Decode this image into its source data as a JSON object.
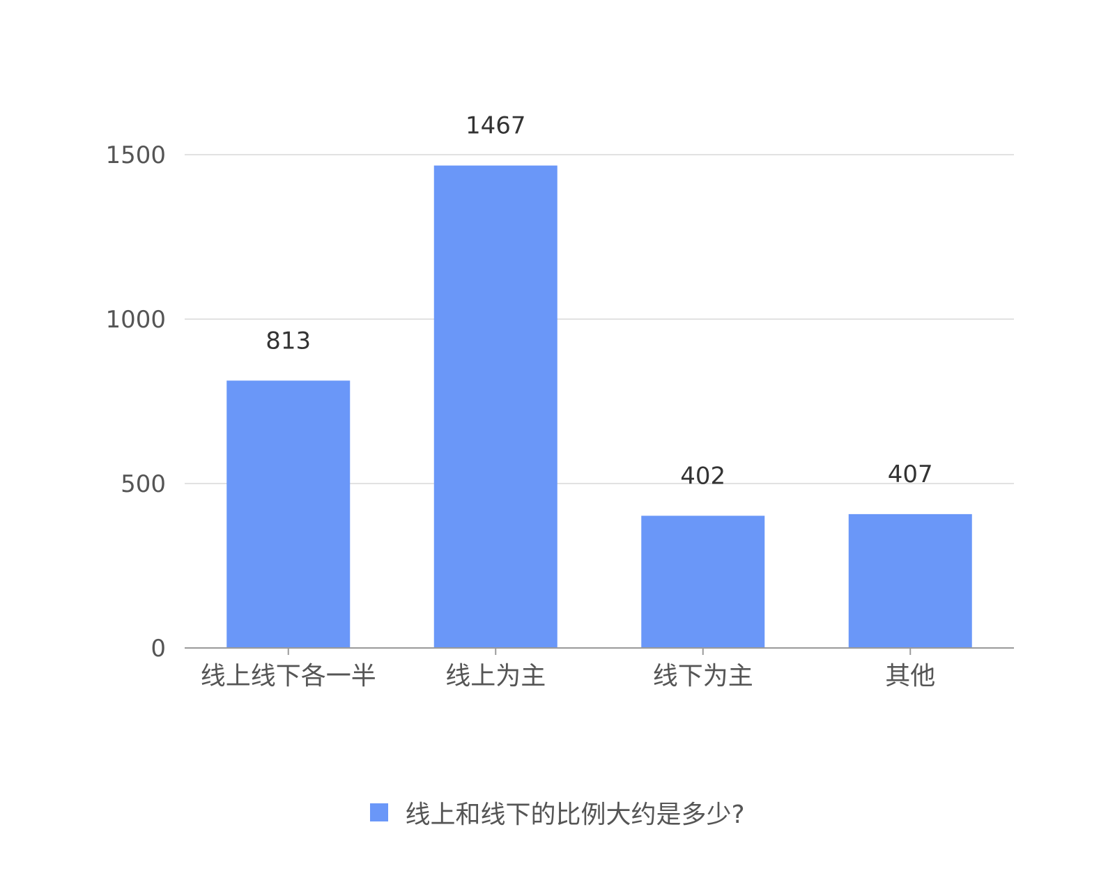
{
  "chart_data": {
    "type": "bar",
    "categories": [
      "线上线下各一半",
      "线上为主",
      "线下为主",
      "其他"
    ],
    "series": [
      {
        "name": "线上和线下的比例大约是多少?",
        "values": [
          813,
          1467,
          402,
          407
        ],
        "color": "#6a97f8"
      }
    ],
    "y_ticks": [
      "0",
      "500",
      "1000",
      "1500"
    ],
    "ylim": [
      0,
      1500
    ],
    "grid": true,
    "legend_position": "bottom"
  }
}
